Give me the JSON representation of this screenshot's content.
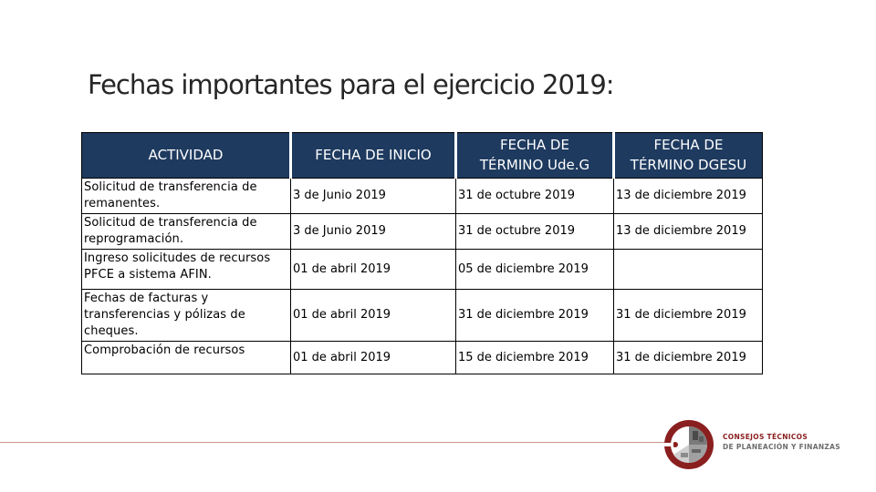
{
  "slide": {
    "title": "Fechas importantes para el ejercicio 2019:"
  },
  "table": {
    "headers": {
      "activity": "ACTIVIDAD",
      "start": "FECHA DE INICIO",
      "end_udeg_line1": "FECHA DE",
      "end_udeg_line2": "TÉRMINO Ude.G",
      "end_dgesu_line1": "FECHA DE",
      "end_dgesu_line2": "TÉRMINO DGESU"
    },
    "rows": [
      {
        "activity": "Solicitud de transferencia de remanentes.",
        "start": "3 de Junio 2019",
        "end_udeg": "31 de octubre 2019",
        "end_dgesu": "13 de diciembre 2019"
      },
      {
        "activity": "Solicitud de transferencia de reprogramación.",
        "start": "3 de Junio 2019",
        "end_udeg": "31 de octubre 2019",
        "end_dgesu": "13 de diciembre 2019"
      },
      {
        "activity": "Ingreso  solicitudes   de recursos PFCE a sistema AFIN.",
        "start": "01 de abril 2019",
        "end_udeg": "05 de diciembre 2019",
        "end_dgesu": ""
      },
      {
        "activity": "Fechas de facturas y transferencias y pólizas de cheques.",
        "start": "01 de abril 2019",
        "end_udeg": "31 de diciembre 2019",
        "end_dgesu": "31 de diciembre 2019"
      },
      {
        "activity": "Comprobación de recursos",
        "start": "01 de abril 2019",
        "end_udeg": "15 de diciembre 2019",
        "end_dgesu": "31 de diciembre 2019"
      }
    ]
  },
  "footer": {
    "org_line1": "CONSEJOS TÉCNICOS",
    "org_line2": "DE PLANEACIÓN Y FINANZAS"
  },
  "colors": {
    "header_bg": "#1e3a5f",
    "logo_red": "#8a1f1f",
    "footer_line": "#c89a86"
  }
}
